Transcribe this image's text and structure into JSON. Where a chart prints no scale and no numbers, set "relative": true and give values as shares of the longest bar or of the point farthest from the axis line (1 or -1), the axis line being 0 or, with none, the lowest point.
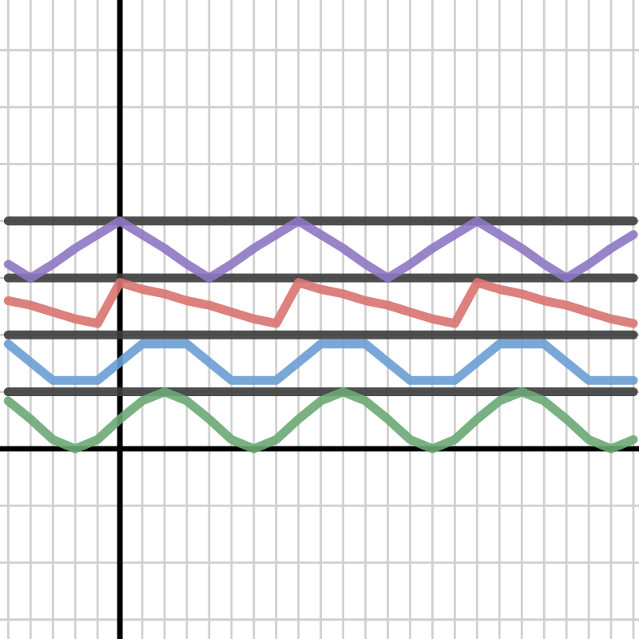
{
  "chart_data": {
    "type": "line",
    "relative": true,
    "grid": true,
    "categories": [
      null,
      null,
      null,
      null,
      null,
      null,
      null,
      null,
      null,
      null,
      null,
      null,
      null,
      null,
      null,
      null,
      null,
      null,
      null,
      null,
      null,
      null,
      null,
      null,
      null,
      null,
      null,
      null,
      null
    ],
    "series": [
      {
        "color": "#3c3c3c",
        "values": [
          0.25,
          0.25,
          0.25,
          0.25,
          0.25,
          0.25,
          0.25,
          0.25,
          0.25,
          0.25,
          0.25,
          0.25,
          0.25,
          0.25,
          0.25,
          0.25,
          0.25,
          0.25,
          0.25,
          0.25,
          0.25,
          0.25,
          0.25,
          0.25,
          0.25,
          0.25,
          0.25,
          0.25,
          0.25
        ]
      },
      {
        "color": "#3c3c3c",
        "values": [
          0.5,
          0.5,
          0.5,
          0.5,
          0.5,
          0.5,
          0.5,
          0.5,
          0.5,
          0.5,
          0.5,
          0.5,
          0.5,
          0.5,
          0.5,
          0.5,
          0.5,
          0.5,
          0.5,
          0.5,
          0.5,
          0.5,
          0.5,
          0.5,
          0.5,
          0.5,
          0.5,
          0.5,
          0.5
        ]
      },
      {
        "color": "#3c3c3c",
        "values": [
          0.75,
          0.75,
          0.75,
          0.75,
          0.75,
          0.75,
          0.75,
          0.75,
          0.75,
          0.75,
          0.75,
          0.75,
          0.75,
          0.75,
          0.75,
          0.75,
          0.75,
          0.75,
          0.75,
          0.75,
          0.75,
          0.75,
          0.75,
          0.75,
          0.75,
          0.75,
          0.75,
          0.75,
          0.75
        ]
      },
      {
        "color": "#3c3c3c",
        "values": [
          1.0,
          1.0,
          1.0,
          1.0,
          1.0,
          1.0,
          1.0,
          1.0,
          1.0,
          1.0,
          1.0,
          1.0,
          1.0,
          1.0,
          1.0,
          1.0,
          1.0,
          1.0,
          1.0,
          1.0,
          1.0,
          1.0,
          1.0,
          1.0,
          1.0,
          1.0,
          1.0,
          1.0,
          1.0
        ]
      },
      {
        "color": "#6aa874",
        "values": [
          0.21,
          0.13,
          0.04,
          0,
          0.04,
          0.13,
          0.21,
          0.25,
          0.21,
          0.13,
          0.04,
          0,
          0.04,
          0.13,
          0.21,
          0.25,
          0.21,
          0.13,
          0.04,
          0,
          0.04,
          0.13,
          0.21,
          0.25,
          0.21,
          0.13,
          0.04,
          0,
          0.04
        ]
      },
      {
        "color": "#6a9fd4",
        "values": [
          0.46,
          0.38,
          0.3,
          0.3,
          0.3,
          0.38,
          0.46,
          0.46,
          0.46,
          0.38,
          0.3,
          0.3,
          0.3,
          0.38,
          0.46,
          0.46,
          0.46,
          0.38,
          0.3,
          0.3,
          0.3,
          0.38,
          0.46,
          0.46,
          0.46,
          0.38,
          0.3,
          0.3,
          0.3
        ]
      },
      {
        "color": "#d97370",
        "values": [
          0.65,
          0.63,
          0.6,
          0.57,
          0.55,
          0.73,
          0.7,
          0.68,
          0.65,
          0.63,
          0.6,
          0.57,
          0.55,
          0.73,
          0.7,
          0.68,
          0.65,
          0.63,
          0.6,
          0.57,
          0.55,
          0.73,
          0.7,
          0.68,
          0.65,
          0.63,
          0.6,
          0.57,
          0.55
        ]
      },
      {
        "color": "#8e77c4",
        "values": [
          0.81,
          0.75,
          0.81,
          0.88,
          0.94,
          1.0,
          0.94,
          0.88,
          0.81,
          0.75,
          0.81,
          0.88,
          0.94,
          1.0,
          0.94,
          0.88,
          0.81,
          0.75,
          0.81,
          0.88,
          0.94,
          1.0,
          0.94,
          0.88,
          0.81,
          0.75,
          0.81,
          0.88,
          0.94
        ]
      }
    ]
  }
}
